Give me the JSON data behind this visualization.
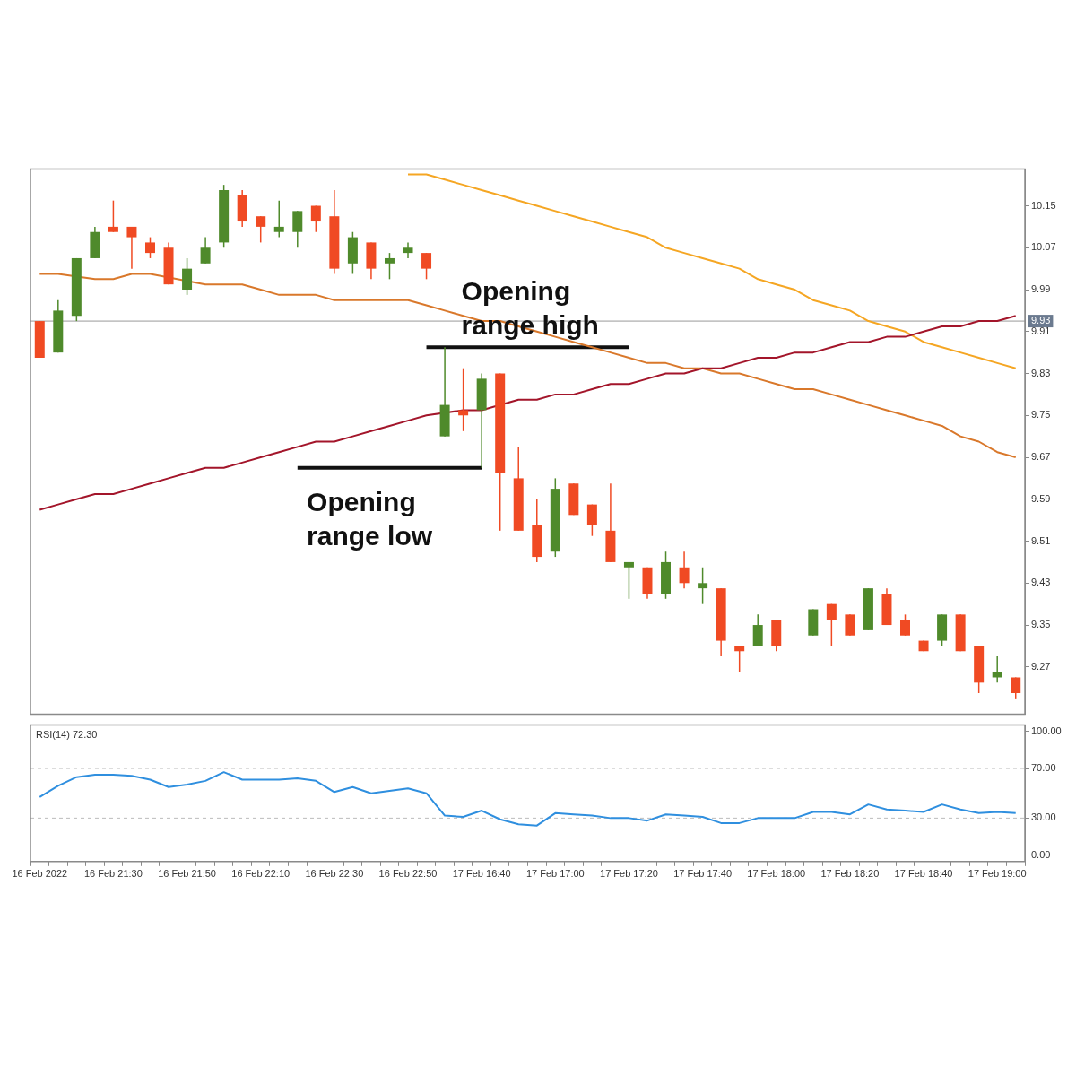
{
  "chart_data": [
    {
      "type": "candlestick",
      "ohlc": [
        [
          9.93,
          9.93,
          9.86,
          9.86
        ],
        [
          9.87,
          9.97,
          9.87,
          9.95
        ],
        [
          9.94,
          10.05,
          9.93,
          10.05
        ],
        [
          10.05,
          10.11,
          10.05,
          10.1
        ],
        [
          10.11,
          10.16,
          10.1,
          10.1
        ],
        [
          10.11,
          10.11,
          10.03,
          10.09
        ],
        [
          10.08,
          10.09,
          10.05,
          10.06
        ],
        [
          10.07,
          10.08,
          10.0,
          10.0
        ],
        [
          9.99,
          10.05,
          9.98,
          10.03
        ],
        [
          10.04,
          10.09,
          10.04,
          10.07
        ],
        [
          10.08,
          10.19,
          10.07,
          10.18
        ],
        [
          10.17,
          10.18,
          10.11,
          10.12
        ],
        [
          10.13,
          10.13,
          10.08,
          10.11
        ],
        [
          10.1,
          10.16,
          10.09,
          10.11
        ],
        [
          10.1,
          10.14,
          10.07,
          10.14
        ],
        [
          10.15,
          10.15,
          10.1,
          10.12
        ],
        [
          10.13,
          10.18,
          10.02,
          10.03
        ],
        [
          10.04,
          10.1,
          10.02,
          10.09
        ],
        [
          10.08,
          10.08,
          10.01,
          10.03
        ],
        [
          10.04,
          10.06,
          10.01,
          10.05
        ],
        [
          10.06,
          10.08,
          10.05,
          10.07
        ],
        [
          10.06,
          10.06,
          10.01,
          10.03
        ],
        [
          9.71,
          9.88,
          9.71,
          9.77
        ],
        [
          9.76,
          9.84,
          9.72,
          9.75
        ],
        [
          9.76,
          9.83,
          9.65,
          9.82
        ],
        [
          9.83,
          9.83,
          9.53,
          9.64
        ],
        [
          9.63,
          9.69,
          9.53,
          9.53
        ],
        [
          9.54,
          9.59,
          9.47,
          9.48
        ],
        [
          9.49,
          9.63,
          9.48,
          9.61
        ],
        [
          9.62,
          9.62,
          9.56,
          9.56
        ],
        [
          9.58,
          9.58,
          9.52,
          9.54
        ],
        [
          9.53,
          9.62,
          9.47,
          9.47
        ],
        [
          9.46,
          9.47,
          9.4,
          9.47
        ],
        [
          9.46,
          9.46,
          9.4,
          9.41
        ],
        [
          9.41,
          9.49,
          9.4,
          9.47
        ],
        [
          9.46,
          9.49,
          9.42,
          9.43
        ],
        [
          9.42,
          9.46,
          9.39,
          9.43
        ],
        [
          9.42,
          9.42,
          9.29,
          9.32
        ],
        [
          9.31,
          9.31,
          9.26,
          9.3
        ],
        [
          9.31,
          9.37,
          9.31,
          9.35
        ],
        [
          9.36,
          9.36,
          9.3,
          9.31
        ],
        null,
        [
          9.33,
          9.38,
          9.33,
          9.38
        ],
        [
          9.39,
          9.39,
          9.31,
          9.36
        ],
        [
          9.37,
          9.37,
          9.33,
          9.33
        ],
        [
          9.34,
          9.42,
          9.34,
          9.42
        ],
        [
          9.41,
          9.42,
          9.35,
          9.35
        ],
        [
          9.36,
          9.37,
          9.33,
          9.33
        ],
        [
          9.32,
          9.32,
          9.3,
          9.3
        ],
        [
          9.32,
          9.37,
          9.31,
          9.37
        ],
        [
          9.37,
          9.37,
          9.3,
          9.3
        ],
        [
          9.31,
          9.31,
          9.22,
          9.24
        ],
        [
          9.25,
          9.29,
          9.24,
          9.26
        ],
        [
          9.25,
          9.25,
          9.21,
          9.22
        ]
      ],
      "colors": [
        "#f04a23",
        "#4f8a2b",
        "#4f8a2b",
        "#4f8a2b",
        "#f04a23",
        "#f04a23",
        "#f04a23",
        "#f04a23",
        "#4f8a2b",
        "#4f8a2b",
        "#4f8a2b",
        "#f04a23",
        "#f04a23",
        "#4f8a2b",
        "#4f8a2b",
        "#f04a23",
        "#f04a23",
        "#4f8a2b",
        "#f04a23",
        "#4f8a2b",
        "#4f8a2b",
        "#f04a23",
        "#4f8a2b",
        "#f04a23",
        "#4f8a2b",
        "#f04a23",
        "#f04a23",
        "#f04a23",
        "#4f8a2b",
        "#f04a23",
        "#f04a23",
        "#f04a23",
        "#4f8a2b",
        "#f04a23",
        "#4f8a2b",
        "#f04a23",
        "#4f8a2b",
        "#f04a23",
        "#f04a23",
        "#4f8a2b",
        "#f04a23",
        null,
        "#4f8a2b",
        "#f04a23",
        "#f04a23",
        "#4f8a2b",
        "#f04a23",
        "#f04a23",
        "#f04a23",
        "#4f8a2b",
        "#f04a23",
        "#f04a23",
        "#4f8a2b",
        "#f04a23"
      ],
      "series": [
        {
          "type": "line",
          "color": "#a3152a",
          "values": [
            9.57,
            9.58,
            9.59,
            9.6,
            9.6,
            9.61,
            9.62,
            9.63,
            9.64,
            9.65,
            9.65,
            9.66,
            9.67,
            9.68,
            9.69,
            9.7,
            9.7,
            9.71,
            9.72,
            9.73,
            9.74,
            9.75,
            null,
            9.76,
            9.76,
            null,
            9.78,
            9.78,
            9.79,
            9.79,
            9.8,
            9.81,
            9.81,
            9.82,
            9.83,
            9.83,
            9.84,
            9.84,
            9.85,
            9.86,
            9.86,
            9.87,
            9.87,
            9.88,
            9.89,
            9.89,
            9.9,
            9.9,
            9.91,
            9.92,
            9.92,
            9.93,
            9.93,
            9.94
          ]
        },
        {
          "type": "line",
          "color": "#d9782b",
          "values": [
            10.02,
            10.02,
            null,
            10.01,
            10.01,
            10.02,
            10.02,
            null,
            null,
            10.0,
            10.0,
            10.0,
            9.99,
            9.98,
            9.98,
            9.98,
            9.97,
            9.97,
            9.97,
            9.97,
            9.97,
            9.96,
            9.95,
            9.94,
            9.93,
            9.93,
            9.92,
            9.91,
            9.9,
            9.89,
            9.88,
            9.87,
            9.86,
            9.85,
            9.85,
            9.84,
            9.84,
            9.83,
            9.83,
            9.82,
            9.81,
            9.8,
            9.8,
            9.79,
            9.78,
            9.77,
            9.76,
            9.75,
            9.74,
            9.73,
            9.71,
            9.7,
            9.68,
            9.67
          ]
        },
        {
          "type": "line",
          "color": "#f5a623",
          "values": [
            null,
            null,
            null,
            null,
            null,
            null,
            null,
            null,
            null,
            null,
            null,
            null,
            null,
            null,
            null,
            null,
            null,
            null,
            null,
            null,
            10.21,
            10.21,
            10.2,
            10.19,
            10.18,
            10.17,
            10.16,
            10.15,
            10.14,
            10.13,
            10.12,
            10.11,
            10.1,
            10.09,
            10.07,
            10.06,
            10.05,
            10.04,
            10.03,
            10.01,
            10.0,
            9.99,
            9.97,
            9.96,
            9.95,
            9.93,
            9.92,
            9.91,
            9.89,
            9.88,
            9.87,
            9.86,
            9.85,
            9.84
          ]
        },
        {
          "type": "line",
          "color": "#111111",
          "values": [
            null,
            null,
            null,
            null,
            null,
            null,
            null,
            null,
            null,
            null,
            null,
            null,
            null,
            null,
            null,
            null,
            null,
            null,
            null,
            null,
            null,
            9.88,
            9.88,
            9.88,
            9.88,
            9.88,
            9.88,
            9.88,
            9.88,
            9.88,
            9.88,
            9.88,
            9.88,
            null,
            null,
            null,
            null,
            null,
            null,
            null,
            null,
            null,
            null,
            null,
            null,
            null,
            null,
            null,
            null,
            null,
            null,
            null,
            null,
            null
          ]
        },
        {
          "type": "line",
          "color": "#111111",
          "values": [
            null,
            null,
            null,
            null,
            null,
            null,
            null,
            null,
            null,
            null,
            null,
            null,
            null,
            null,
            9.65,
            9.65,
            9.65,
            9.65,
            9.65,
            9.65,
            9.65,
            9.65,
            9.65,
            9.65,
            9.65,
            null,
            null,
            null,
            null,
            null,
            null,
            null,
            null,
            null,
            null,
            null,
            null,
            null,
            null,
            null,
            null,
            null,
            null,
            null,
            null,
            null,
            null,
            null,
            null,
            null,
            null,
            null,
            null,
            null
          ]
        }
      ],
      "ylim": [
        9.18,
        10.22
      ],
      "yticks": [
        10.15,
        10.07,
        9.99,
        9.91,
        9.83,
        9.75,
        9.67,
        9.59,
        9.51,
        9.43,
        9.35,
        9.27
      ],
      "tick_labels": "y",
      "ref_lines": [
        {
          "axis": "y",
          "value": 9.93,
          "label": "9.93",
          "color": "#999999"
        }
      ],
      "annotations": [
        "Opening range high",
        "Opening range low"
      ]
    },
    {
      "type": "line",
      "title": "RSI(14) 72.30",
      "categories": [
        "16 Feb 2022",
        null,
        null,
        null,
        "16 Feb 21:30",
        null,
        null,
        null,
        "16 Feb 21:50",
        null,
        null,
        null,
        "16 Feb 22:10",
        null,
        null,
        null,
        "16 Feb 22:30",
        null,
        null,
        null,
        "16 Feb 22:50",
        null,
        null,
        null,
        "17 Feb 16:40",
        null,
        null,
        null,
        "17 Feb 17:00",
        null,
        null,
        null,
        "17 Feb 17:20",
        null,
        null,
        null,
        "17 Feb 17:40",
        null,
        null,
        null,
        "17 Feb 18:00",
        null,
        null,
        null,
        "17 Feb 18:20",
        null,
        null,
        null,
        "17 Feb 18:40",
        null,
        null,
        null,
        "17 Feb 19:00",
        null
      ],
      "series": [
        {
          "color": "#2f8fdf",
          "values": [
            47,
            56,
            63,
            65,
            65,
            64,
            61,
            55,
            57,
            60,
            67,
            61,
            61,
            61,
            62,
            60,
            51,
            55,
            50,
            52,
            54,
            50,
            32,
            31,
            36,
            29,
            25,
            24,
            34,
            33,
            32,
            30,
            30,
            28,
            33,
            32,
            31,
            26,
            26,
            30,
            30,
            30,
            35,
            35,
            33,
            41,
            37,
            36,
            35,
            41,
            37,
            34,
            35,
            34
          ]
        }
      ],
      "ylim": [
        -5,
        105
      ],
      "yticks": [
        {
          "value": 0,
          "label": "0.00"
        },
        {
          "value": 30,
          "label": "30.00"
        },
        {
          "value": 70,
          "label": "70.00"
        },
        {
          "value": 100,
          "label": "100.00"
        }
      ],
      "ref_lines": [
        {
          "axis": "y",
          "value": 70,
          "color": "#bbbbbb",
          "line_style": "dashed"
        },
        {
          "axis": "y",
          "value": 30,
          "color": "#bbbbbb",
          "line_style": "dashed"
        }
      ]
    }
  ]
}
